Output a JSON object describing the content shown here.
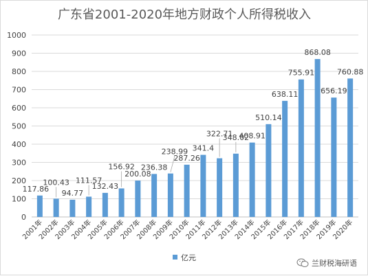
{
  "chart_data": {
    "type": "bar",
    "title": "广东省2001-2020年地方财政个人所得税收入",
    "categories": [
      "2001年",
      "2002年",
      "2003年",
      "2004年",
      "2005年",
      "2006年",
      "2007年",
      "2008年",
      "2009年",
      "2010年",
      "2011年",
      "2012年",
      "2013年",
      "2014年",
      "2015年",
      "2016年",
      "2017年",
      "2018年",
      "2019年",
      "2020年"
    ],
    "series": [
      {
        "name": "亿元",
        "values": [
          117.86,
          100.43,
          94.77,
          111.57,
          132.43,
          156.92,
          200.08,
          236.38,
          238.99,
          287.26,
          341.4,
          322.71,
          348.02,
          408.91,
          510.14,
          638.11,
          755.91,
          868.08,
          656.19,
          760.88
        ],
        "color": "#5b9bd5"
      }
    ],
    "ylim": [
      0,
      1000
    ],
    "yticks": [
      0,
      100,
      200,
      300,
      400,
      500,
      600,
      700,
      800,
      900,
      1000
    ],
    "grid": true,
    "legend": "bottom"
  },
  "watermark": {
    "text": "兰财税海研语",
    "icon": "wechat-icon"
  }
}
